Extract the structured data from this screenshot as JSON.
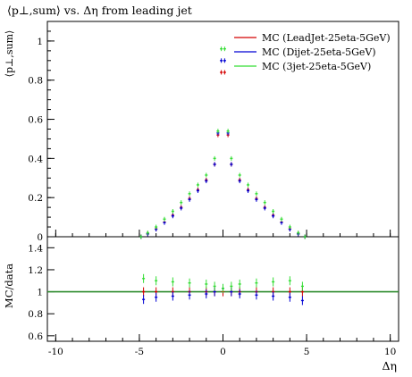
{
  "chart_data": [
    {
      "type": "scatter",
      "title": "⟨p⊥,sum⟩ vs. Δη from leading jet",
      "ylabel": "⟨p⊥,sum⟩",
      "xlim": [
        -10.5,
        10.5
      ],
      "ylim": [
        0,
        1.1
      ],
      "yticks": [
        "0",
        "0.2",
        "0.4",
        "0.6",
        "0.8",
        "1"
      ],
      "legend_position": "top-right",
      "grid": false,
      "series": [
        {
          "name": "MC (LeadJet-25eta-5GeV)",
          "color": "#d40000",
          "x": [
            -4.9,
            -4.5,
            -4.0,
            -3.5,
            -3.0,
            -2.5,
            -2.0,
            -1.5,
            -1.0,
            -0.5,
            -0.3,
            -0.1,
            0.1,
            0.3,
            0.5,
            1.0,
            1.5,
            2.0,
            2.5,
            3.0,
            3.5,
            4.0,
            4.5,
            4.9
          ],
          "y": [
            0.0,
            0.015,
            0.04,
            0.075,
            0.11,
            0.15,
            0.195,
            0.24,
            0.29,
            0.37,
            0.52,
            0.84,
            0.84,
            0.52,
            0.37,
            0.29,
            0.24,
            0.195,
            0.15,
            0.11,
            0.075,
            0.04,
            0.015,
            0.0
          ]
        },
        {
          "name": "MC (Dijet-25eta-5GeV)",
          "color": "#0000d4",
          "x": [
            -4.9,
            -4.5,
            -4.0,
            -3.5,
            -3.0,
            -2.5,
            -2.0,
            -1.5,
            -1.0,
            -0.5,
            -0.3,
            -0.1,
            0.1,
            0.3,
            0.5,
            1.0,
            1.5,
            2.0,
            2.5,
            3.0,
            3.5,
            4.0,
            4.5,
            4.9
          ],
          "y": [
            0.0,
            0.014,
            0.038,
            0.072,
            0.106,
            0.146,
            0.19,
            0.235,
            0.285,
            0.37,
            0.53,
            0.9,
            0.9,
            0.53,
            0.37,
            0.285,
            0.235,
            0.19,
            0.146,
            0.106,
            0.072,
            0.038,
            0.014,
            0.0
          ]
        },
        {
          "name": "MC (3jet-25eta-5GeV)",
          "color": "#33dd33",
          "x": [
            -4.9,
            -4.5,
            -4.0,
            -3.5,
            -3.0,
            -2.5,
            -2.0,
            -1.5,
            -1.0,
            -0.5,
            -0.3,
            -0.1,
            0.1,
            0.3,
            0.5,
            1.0,
            1.5,
            2.0,
            2.5,
            3.0,
            3.5,
            4.0,
            4.5,
            4.9
          ],
          "y": [
            0.0,
            0.02,
            0.05,
            0.09,
            0.13,
            0.175,
            0.22,
            0.265,
            0.315,
            0.4,
            0.54,
            0.96,
            0.96,
            0.54,
            0.4,
            0.315,
            0.265,
            0.22,
            0.175,
            0.13,
            0.09,
            0.05,
            0.02,
            0.0
          ]
        }
      ]
    },
    {
      "type": "scatter",
      "ylabel": "MC/data",
      "xlabel": "Δη",
      "xlim": [
        -10.5,
        10.5
      ],
      "ylim": [
        0.55,
        1.5
      ],
      "xticks": [
        "-10",
        "-5",
        "0",
        "5",
        "10"
      ],
      "yticks": [
        "0.6",
        "0.8",
        "1",
        "1.2",
        "1.4"
      ],
      "reference_line": 1,
      "reference_color": "#2e8b2e",
      "grid": false,
      "series": [
        {
          "name": "MC (LeadJet-25eta-5GeV)",
          "color": "#d40000",
          "x": [
            -4.75,
            -4.0,
            -3.0,
            -2.0,
            -1.0,
            -0.5,
            0.0,
            0.5,
            1.0,
            2.0,
            3.0,
            4.0,
            4.75
          ],
          "y": [
            1.0,
            1.0,
            1.0,
            1.0,
            1.0,
            1.0,
            1.0,
            1.0,
            1.0,
            1.0,
            1.0,
            1.0,
            1.0
          ]
        },
        {
          "name": "MC (Dijet-25eta-5GeV)",
          "color": "#0000d4",
          "x": [
            -4.75,
            -4.0,
            -3.0,
            -2.0,
            -1.0,
            -0.5,
            0.0,
            0.5,
            1.0,
            2.0,
            3.0,
            4.0,
            4.75
          ],
          "y": [
            0.93,
            0.95,
            0.96,
            0.97,
            0.98,
            1.0,
            1.03,
            1.0,
            0.98,
            0.97,
            0.96,
            0.95,
            0.92
          ]
        },
        {
          "name": "MC (3jet-25eta-5GeV)",
          "color": "#33dd33",
          "x": [
            -4.75,
            -4.0,
            -3.0,
            -2.0,
            -1.0,
            -0.5,
            0.0,
            0.5,
            1.0,
            2.0,
            3.0,
            4.0,
            4.75
          ],
          "y": [
            1.12,
            1.1,
            1.09,
            1.08,
            1.07,
            1.05,
            1.03,
            1.05,
            1.07,
            1.08,
            1.09,
            1.1,
            1.05
          ]
        }
      ]
    }
  ]
}
